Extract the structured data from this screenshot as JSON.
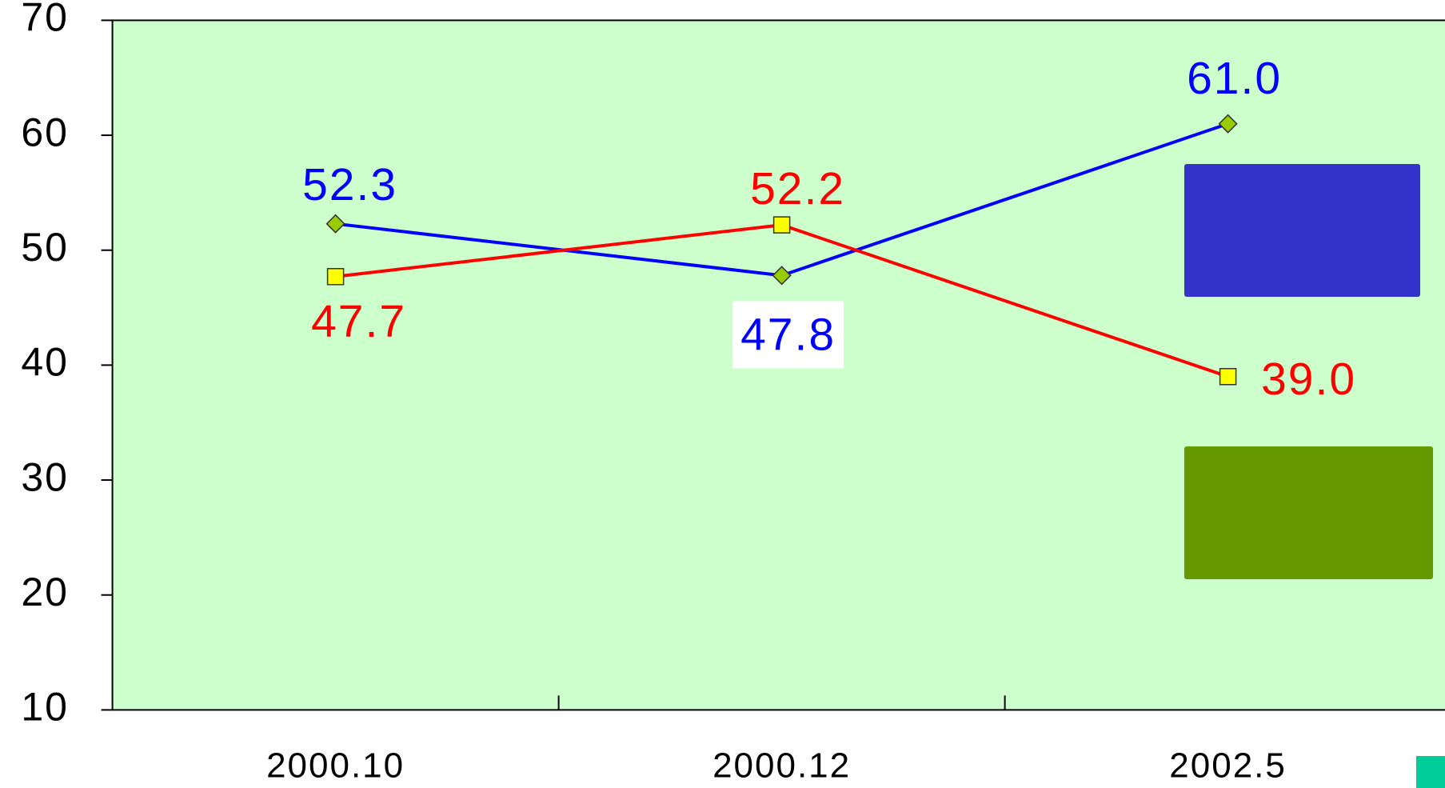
{
  "chart_data": {
    "type": "line",
    "categories": [
      "2000.10",
      "2000.12",
      "2002.5"
    ],
    "series": [
      {
        "color": "#0000ff",
        "values": [
          52.3,
          47.8,
          61.0
        ],
        "value_labels": [
          "52.3",
          "47.8",
          "61.0"
        ],
        "marker": "diamond",
        "marker_color": "#99cc00"
      },
      {
        "color": "#ff0000",
        "values": [
          47.7,
          52.2,
          39.0
        ],
        "value_labels": [
          "47.7",
          "52.2",
          "39.0"
        ],
        "marker": "square",
        "marker_color": "#ffff00"
      }
    ],
    "ylim": [
      10,
      70
    ],
    "yticks": [
      10,
      20,
      30,
      40,
      50,
      60,
      70
    ],
    "plot_background": "#ccffcc"
  }
}
